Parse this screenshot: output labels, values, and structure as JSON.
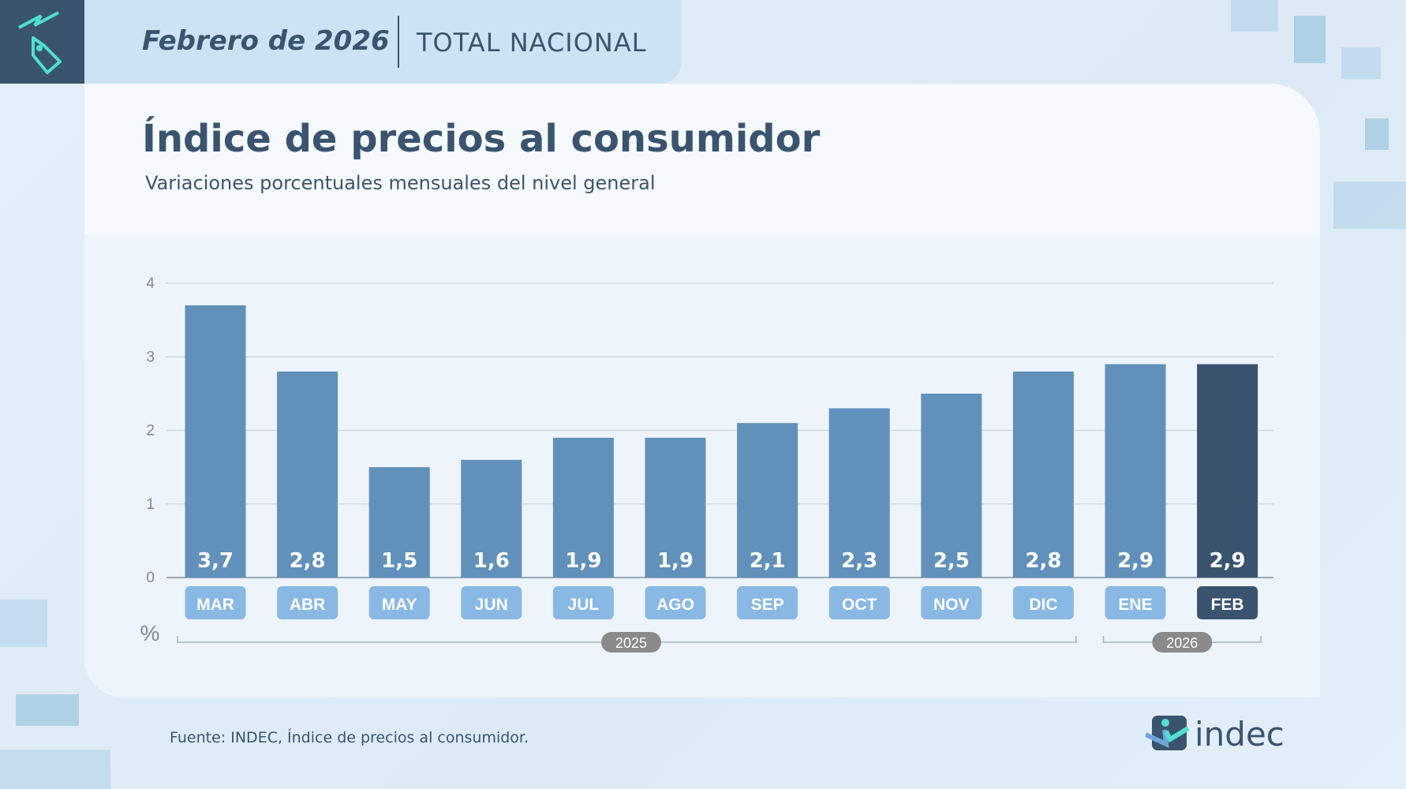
{
  "header": {
    "date": "Febrero de 2026",
    "scope": "TOTAL NACIONAL",
    "icon": "price-tag-trend-icon"
  },
  "title": "Índice de precios al consumidor",
  "subtitle": "Variaciones porcentuales mensuales del nivel general",
  "source": "Fuente: INDEC, Índice de precios al consumidor.",
  "logo": {
    "text": "indec"
  },
  "colors": {
    "bar": "#6190ba",
    "bar_highlight": "#3a5470",
    "pill": "#89b8e4",
    "pill_highlight": "#3a5470",
    "year_badge": "#8a8a8a"
  },
  "chart_data": {
    "type": "bar",
    "categories": [
      "MAR",
      "ABR",
      "MAY",
      "JUN",
      "JUL",
      "AGO",
      "SEP",
      "OCT",
      "NOV",
      "DIC",
      "ENE",
      "FEB"
    ],
    "values": [
      3.7,
      2.8,
      1.5,
      1.6,
      1.9,
      1.9,
      2.1,
      2.3,
      2.5,
      2.8,
      2.9,
      2.9
    ],
    "data_labels": [
      "3,7",
      "2,8",
      "1,5",
      "1,6",
      "1,9",
      "1,9",
      "2,1",
      "2,3",
      "2,5",
      "2,8",
      "2,9",
      "2,9"
    ],
    "highlight": "FEB",
    "ylabel": "%",
    "ylim": [
      0,
      4
    ],
    "yticks": [
      "0",
      "1",
      "2",
      "3",
      "4"
    ],
    "grid": true,
    "year_groups": [
      {
        "label": "2025",
        "from": "MAR",
        "to": "DIC"
      },
      {
        "label": "2026",
        "from": "ENE",
        "to": "FEB"
      }
    ]
  }
}
